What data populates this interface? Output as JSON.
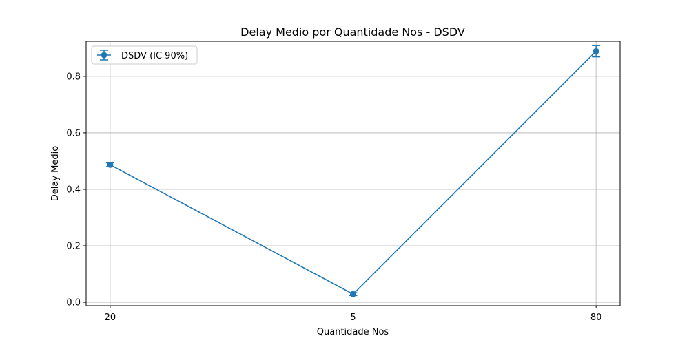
{
  "chart_data": {
    "type": "line",
    "title": "Delay Medio por Quantidade Nos - DSDV",
    "xlabel": "Quantidade Nos",
    "ylabel": "Delay Medio",
    "categories": [
      "20",
      "5",
      "80"
    ],
    "series": [
      {
        "name": "DSDV (IC 90%)",
        "values": [
          0.487,
          0.029,
          0.889
        ],
        "error": [
          0.007,
          0.005,
          0.02
        ],
        "color": "#1f77b4"
      }
    ],
    "ylim": [
      -0.012,
      0.924
    ],
    "yticks": [
      "0.0",
      "0.2",
      "0.4",
      "0.6",
      "0.8"
    ],
    "grid": true,
    "legend": "upper-left"
  }
}
